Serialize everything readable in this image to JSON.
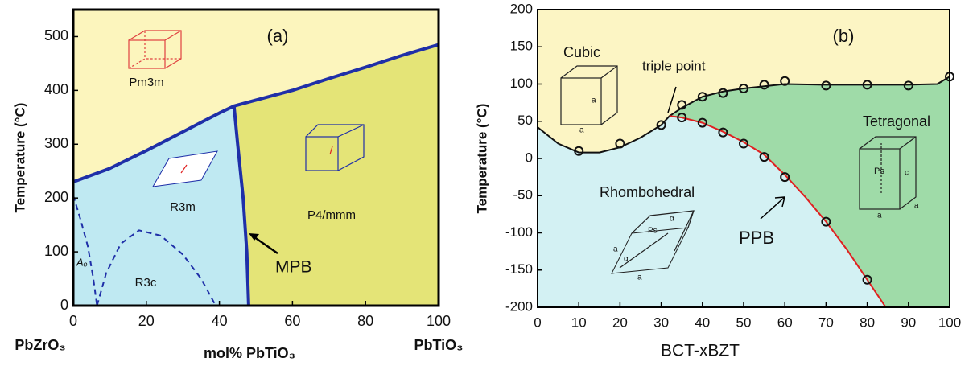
{
  "chart_data": [
    {
      "type": "phase",
      "y_label": "Temperature (°C)",
      "x_labels": [
        "PbZrO₃",
        "mol% PbTiO₃",
        "PbTiO₃"
      ],
      "annotations": [
        "(a)",
        "Pm3m",
        "R3m",
        "R3c",
        "P4/mmm",
        "MPB",
        "Aₒ"
      ],
      "xlim": [
        0,
        100
      ],
      "xticks": [
        0,
        20,
        40,
        60,
        80,
        100
      ],
      "ylim": [
        0,
        550
      ],
      "yticks": [
        0,
        100,
        200,
        300,
        400,
        500
      ],
      "region_colors": {
        "upper": "#fcf5bd",
        "left": "#bfe9f2",
        "right": "#e4e477"
      },
      "lines": [
        {
          "x": [
            0,
            10,
            20,
            30,
            40,
            44,
            50,
            60,
            70,
            80,
            90,
            100
          ],
          "values": [
            230,
            255,
            288,
            323,
            358,
            371,
            382,
            400,
            422,
            443,
            465,
            485
          ],
          "color": "#1f2fa8",
          "dash": false
        },
        {
          "x": [
            44,
            45,
            46.5,
            47.5,
            48
          ],
          "values": [
            371,
            300,
            200,
            100,
            0
          ],
          "color": "#1f2fa8",
          "dash": false
        },
        {
          "x": [
            0,
            2,
            4,
            5.5,
            6.5
          ],
          "values": [
            205,
            160,
            110,
            50,
            0
          ],
          "color": "#1f2fa8",
          "dash": true
        },
        {
          "x": [
            6.5,
            9,
            13,
            18,
            24,
            30,
            35,
            39
          ],
          "values": [
            0,
            60,
            115,
            140,
            130,
            95,
            50,
            0
          ],
          "color": "#1f2fa8",
          "dash": true
        }
      ]
    },
    {
      "type": "phase",
      "y_label": "Temperature (°C)",
      "x_labels": [
        "BCT-xBZT"
      ],
      "annotations": [
        "(b)",
        "Cubic",
        "triple point",
        "Tetragonal",
        "Rhombohedral",
        "PPB",
        "a",
        "a",
        "Ps",
        "c",
        "a",
        "a",
        "Ps",
        "a",
        "a",
        "α",
        "α"
      ],
      "xlim": [
        0,
        100
      ],
      "xticks": [
        0,
        10,
        20,
        30,
        40,
        50,
        60,
        70,
        80,
        90,
        100
      ],
      "ylim": [
        -200,
        200
      ],
      "yticks": [
        -200,
        -150,
        -100,
        -50,
        0,
        50,
        100,
        150,
        200
      ],
      "region_colors": {
        "upper": "#fcf5c4",
        "left": "#d3f1f3",
        "right": "#9fdba8"
      },
      "lines": [
        {
          "x": [
            0,
            5,
            10,
            15,
            20,
            25,
            30,
            32,
            35,
            40,
            45,
            50,
            60,
            70,
            80,
            90,
            97,
            100
          ],
          "values": [
            42,
            20,
            8,
            8,
            15,
            28,
            45,
            57,
            68,
            83,
            90,
            94,
            100,
            99,
            99,
            99,
            100,
            110
          ],
          "color": "#111111",
          "dash": false
        },
        {
          "x": [
            32,
            35,
            40,
            45,
            50,
            55,
            60,
            65,
            70,
            75,
            80,
            84.5
          ],
          "values": [
            57,
            55,
            48,
            36,
            22,
            5,
            -22,
            -52,
            -85,
            -122,
            -163,
            -200
          ],
          "color": "#e02020",
          "dash": false
        }
      ],
      "points": {
        "x": [
          10,
          20,
          30,
          35,
          40,
          45,
          50,
          55,
          60,
          70,
          80,
          90,
          100,
          35,
          40,
          45,
          50,
          55,
          60,
          70,
          80
        ],
        "values": [
          10,
          20,
          45,
          72,
          83,
          88,
          94,
          99,
          104,
          98,
          99,
          98,
          110,
          55,
          48,
          35,
          20,
          2,
          -25,
          -85,
          -163
        ]
      }
    }
  ]
}
